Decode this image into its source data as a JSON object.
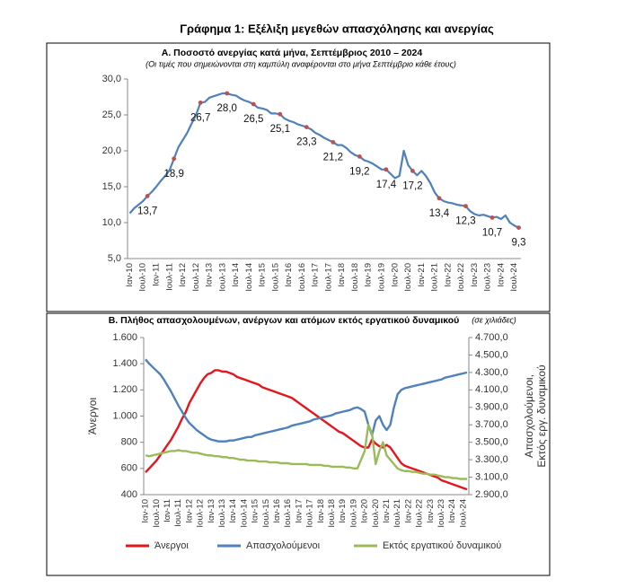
{
  "title": "Γράφημα 1: Εξέλιξη μεγεθών απασχόλησης και ανεργίας",
  "chart_data": [
    {
      "type": "line",
      "title": "Α. Ποσοστό ανεργίας κατά μήνα, Σεπτέμβριος 2010 – 2024",
      "subtitle": "(Οι τιμές που σημειώνονται στη καμπύλη αναφέρονται στο μήνα Σεπτέμβριο κάθε έτους)",
      "categories": [
        "Ιαν-10",
        null,
        null,
        "Ιουλ-10",
        null,
        null,
        "Ιαν-11",
        null,
        null,
        "Ιουλ-11",
        null,
        null,
        "Ιαν-12",
        null,
        null,
        "Ιουλ-12",
        null,
        null,
        "Ιαν-13",
        null,
        null,
        "Ιουλ-13",
        null,
        null,
        "Ιαν-14",
        null,
        null,
        "Ιουλ-14",
        null,
        null,
        "Ιαν-15",
        null,
        null,
        "Ιουλ-15",
        null,
        null,
        "Ιαν-16",
        null,
        null,
        "Ιουλ-16",
        null,
        null,
        "Ιαν-17",
        null,
        null,
        "Ιουλ-17",
        null,
        null,
        "Ιαν-18",
        null,
        null,
        "Ιουλ-18",
        null,
        null,
        "Ιαν-19",
        null,
        null,
        "Ιουλ-19",
        null,
        null,
        "Ιαν-20",
        null,
        null,
        "Ιουλ-20",
        null,
        null,
        "Ιαν-21",
        null,
        null,
        "Ιουλ-21",
        null,
        null,
        "Ιαν-22",
        null,
        null,
        "Ιουλ-22",
        null,
        null,
        "Ιαν-23",
        null,
        null,
        "Ιουλ-23",
        null,
        null,
        "Ιαν-24",
        null,
        null,
        "Ιουλ-24",
        null
      ],
      "values": [
        11.3,
        12.0,
        12.5,
        13.0,
        13.7,
        14.3,
        15.0,
        15.8,
        16.5,
        17.3,
        18.9,
        20.5,
        21.5,
        22.5,
        23.8,
        25.0,
        26.7,
        26.8,
        27.4,
        27.6,
        27.8,
        28.0,
        28.0,
        27.8,
        27.7,
        27.3,
        27.0,
        26.8,
        26.5,
        26.0,
        25.9,
        25.7,
        25.2,
        25.2,
        25.1,
        24.5,
        24.2,
        24.0,
        23.7,
        23.5,
        23.3,
        23.0,
        22.5,
        22.2,
        21.8,
        21.5,
        21.2,
        20.8,
        20.8,
        20.4,
        19.8,
        19.4,
        19.2,
        18.7,
        18.5,
        18.2,
        17.8,
        17.4,
        17.4,
        16.8,
        16.2,
        16.5,
        20.0,
        18.0,
        17.2,
        16.6,
        17.2,
        16.5,
        15.5,
        14.2,
        13.4,
        13.0,
        12.8,
        12.7,
        12.5,
        12.4,
        12.3,
        11.6,
        11.2,
        11.0,
        11.1,
        10.9,
        10.7,
        10.8,
        10.5,
        11.0,
        10.0,
        9.6,
        9.3
      ],
      "value_labels": [
        null,
        null,
        null,
        null,
        "13,7",
        null,
        null,
        null,
        null,
        null,
        "18,9",
        null,
        null,
        null,
        null,
        null,
        "26,7",
        null,
        null,
        null,
        null,
        null,
        "28,0",
        null,
        null,
        null,
        null,
        null,
        "26,5",
        null,
        null,
        null,
        null,
        null,
        "25,1",
        null,
        null,
        null,
        null,
        null,
        "23,3",
        null,
        null,
        null,
        null,
        null,
        "21,2",
        null,
        null,
        null,
        null,
        null,
        "19,2",
        null,
        null,
        null,
        null,
        null,
        "17,4",
        null,
        null,
        null,
        null,
        null,
        "17,2",
        null,
        null,
        null,
        null,
        null,
        "13,4",
        null,
        null,
        null,
        null,
        null,
        "12,3",
        null,
        null,
        null,
        null,
        null,
        "10,7",
        null,
        null,
        null,
        null,
        null,
        "9,3"
      ],
      "color": "#4f81bd",
      "marker_color": "#c0504d",
      "ylim": [
        5,
        30
      ],
      "yticks": [
        {
          "value": 5,
          "label": "5,0"
        },
        {
          "value": 10,
          "label": "10,0"
        },
        {
          "value": 15,
          "label": "15,0"
        },
        {
          "value": 20,
          "label": "20,0"
        },
        {
          "value": 25,
          "label": "25,0"
        },
        {
          "value": 30,
          "label": "30,0"
        }
      ]
    },
    {
      "type": "line",
      "title": "Β. Πλήθος απασχολουμένων, ανέργων και ατόμων εκτός εργατικού δυναμικού",
      "subtitle": "(σε χιλιάδες)",
      "ylabel": "Άνεργοι",
      "y2label": [
        "Απασχολούμενοι,",
        "Εκτός εργ. δυναμικού"
      ],
      "categories": [
        "Ιαν-10",
        null,
        null,
        "Ιουλ-10",
        null,
        null,
        "Ιαν-11",
        null,
        null,
        "Ιουλ-11",
        null,
        null,
        "Ιαν-12",
        null,
        null,
        "Ιουλ-12",
        null,
        null,
        "Ιαν-13",
        null,
        null,
        "Ιουλ-13",
        null,
        null,
        "Ιαν-14",
        null,
        null,
        "Ιουλ-14",
        null,
        null,
        "Ιαν-15",
        null,
        null,
        "Ιουλ-15",
        null,
        null,
        "Ιαν-16",
        null,
        null,
        "Ιουλ-16",
        null,
        null,
        "Ιαν-17",
        null,
        null,
        "Ιουλ-17",
        null,
        null,
        "Ιαν-18",
        null,
        null,
        "Ιουλ-18",
        null,
        null,
        "Ιαν-19",
        null,
        null,
        "Ιουλ-19",
        null,
        null,
        "Ιαν-20",
        null,
        null,
        "Ιουλ-20",
        null,
        null,
        "Ιαν-21",
        null,
        null,
        "Ιουλ-21",
        null,
        null,
        "Ιαν-22",
        null,
        null,
        "Ιουλ-22",
        null,
        null,
        "Ιαν-23",
        null,
        null,
        "Ιουλ-23",
        null,
        null,
        "Ιαν-24",
        null,
        null,
        "Ιουλ-24",
        null
      ],
      "series": [
        {
          "name": "Άνεργοι",
          "color": "#e8141b",
          "values": [
            570,
            600,
            630,
            660,
            700,
            740,
            780,
            820,
            870,
            920,
            980,
            1030,
            1100,
            1150,
            1200,
            1250,
            1290,
            1320,
            1330,
            1350,
            1350,
            1340,
            1340,
            1330,
            1320,
            1300,
            1290,
            1280,
            1270,
            1260,
            1250,
            1240,
            1220,
            1210,
            1200,
            1190,
            1180,
            1170,
            1160,
            1150,
            1140,
            1120,
            1100,
            1080,
            1060,
            1040,
            1020,
            1000,
            980,
            960,
            940,
            920,
            900,
            880,
            870,
            850,
            830,
            810,
            790,
            770,
            760,
            760,
            820,
            790,
            770,
            760,
            780,
            760,
            720,
            680,
            640,
            620,
            610,
            600,
            590,
            580,
            570,
            560,
            550,
            540,
            530,
            510,
            500,
            490,
            480,
            470,
            460,
            450,
            440
          ]
        },
        {
          "name": "Απασχολούμενοι",
          "color": "#4f81bd",
          "axis": "y2",
          "values": [
            4450,
            4400,
            4360,
            4320,
            4280,
            4220,
            4150,
            4080,
            4000,
            3920,
            3850,
            3780,
            3720,
            3680,
            3640,
            3610,
            3580,
            3550,
            3530,
            3520,
            3510,
            3510,
            3510,
            3520,
            3520,
            3530,
            3540,
            3550,
            3560,
            3560,
            3580,
            3590,
            3600,
            3610,
            3620,
            3630,
            3640,
            3650,
            3660,
            3670,
            3690,
            3700,
            3710,
            3720,
            3730,
            3740,
            3760,
            3770,
            3780,
            3790,
            3800,
            3810,
            3830,
            3840,
            3850,
            3860,
            3870,
            3890,
            3900,
            3880,
            3850,
            3700,
            3580,
            3750,
            3800,
            3700,
            3640,
            3700,
            3900,
            4050,
            4100,
            4120,
            4130,
            4140,
            4150,
            4160,
            4170,
            4180,
            4190,
            4200,
            4210,
            4220,
            4240,
            4250,
            4260,
            4270,
            4280,
            4290,
            4300
          ]
        },
        {
          "name": "Εκτός εργατικού δυναμικού",
          "color": "#9bbb59",
          "axis": "y2",
          "values": [
            3350,
            3340,
            3350,
            3360,
            3370,
            3380,
            3390,
            3400,
            3400,
            3410,
            3400,
            3400,
            3390,
            3380,
            3380,
            3370,
            3360,
            3350,
            3350,
            3340,
            3340,
            3330,
            3330,
            3320,
            3320,
            3310,
            3300,
            3300,
            3290,
            3290,
            3290,
            3280,
            3280,
            3280,
            3270,
            3270,
            3270,
            3260,
            3260,
            3260,
            3250,
            3250,
            3250,
            3250,
            3250,
            3240,
            3240,
            3240,
            3240,
            3230,
            3230,
            3220,
            3220,
            3220,
            3220,
            3210,
            3210,
            3200,
            3200,
            3300,
            3400,
            3700,
            3600,
            3250,
            3400,
            3500,
            3350,
            3300,
            3250,
            3200,
            3180,
            3170,
            3170,
            3160,
            3160,
            3150,
            3140,
            3140,
            3130,
            3130,
            3120,
            3110,
            3100,
            3100,
            3090,
            3090,
            3080,
            3080,
            3080
          ]
        }
      ],
      "ylim": [
        400,
        1600
      ],
      "yticks": [
        400,
        600,
        800,
        {
          "value": 1000,
          "label": "1.000"
        },
        {
          "value": 1200,
          "label": "1.200"
        },
        {
          "value": 1400,
          "label": "1.400"
        },
        {
          "value": 1600,
          "label": "1.600"
        }
      ],
      "y2lim": [
        2900,
        4700
      ],
      "y2ticks": [
        {
          "value": 2900,
          "label": "2.900,0"
        },
        {
          "value": 3100,
          "label": "3.100,0"
        },
        {
          "value": 3300,
          "label": "3.300,0"
        },
        {
          "value": 3500,
          "label": "3.500,0"
        },
        {
          "value": 3700,
          "label": "3.700,0"
        },
        {
          "value": 3900,
          "label": "3.900,0"
        },
        {
          "value": 4100,
          "label": "4.100,0"
        },
        {
          "value": 4300,
          "label": "4.300,0"
        },
        {
          "value": 4500,
          "label": "4.500,0"
        },
        {
          "value": 4700,
          "label": "4.700,0"
        }
      ],
      "legend": "bottom"
    }
  ]
}
